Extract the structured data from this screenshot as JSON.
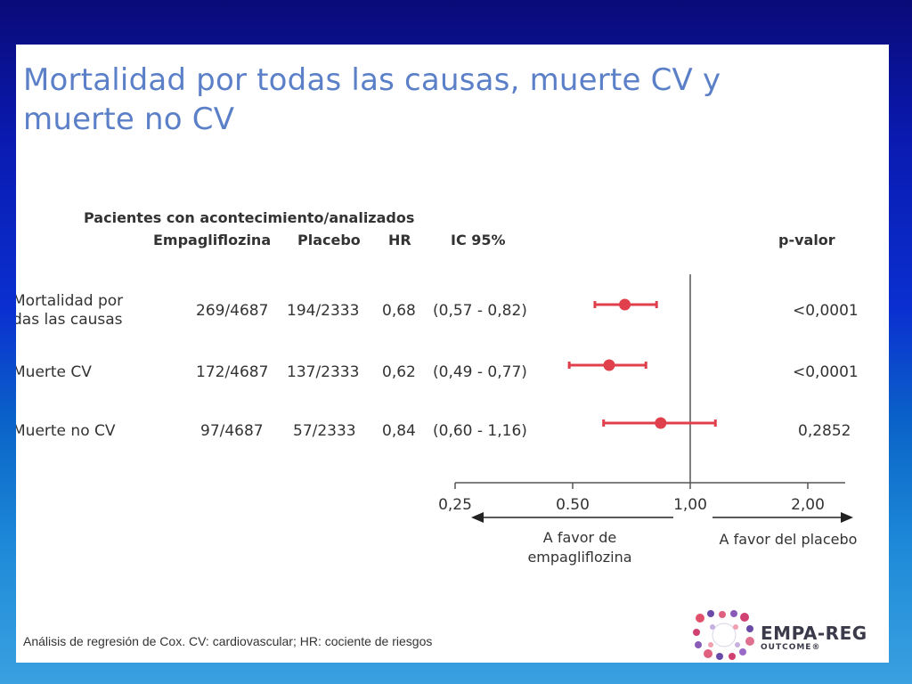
{
  "slide": {
    "title_line1": "Mortalidad por todas las causas, muerte CV y",
    "title_line2": "muerte no CV",
    "footer": "Análisis de regresión de Cox. CV: cardiovascular; HR: cociente de riesgos",
    "logo_line1": "EMPA-REG",
    "logo_line2": "OUTCOME®"
  },
  "table": {
    "group_header": "Pacientes con acontecimiento/analizados",
    "col_empa": "Empagliflozina",
    "col_placebo": "Placebo",
    "col_hr": "HR",
    "col_ic": "IC 95%",
    "col_p": "p-valor",
    "rows": [
      {
        "label_line1": "Mortalidad por",
        "label_line2": "das las causas",
        "empa": "269/4687",
        "placebo": "194/2333",
        "hr": "0,68",
        "ic": "(0,57 - 0,82)",
        "p": "<0,0001"
      },
      {
        "label_line1": "Muerte CV",
        "label_line2": "",
        "empa": "172/4687",
        "placebo": "137/2333",
        "hr": "0,62",
        "ic": "(0,49 - 0,77)",
        "p": "<0,0001"
      },
      {
        "label_line1": "Muerte no CV",
        "label_line2": "",
        "empa": "97/4687",
        "placebo": "57/2333",
        "hr": "0,84",
        "ic": "(0,60 - 1,16)",
        "p": "0,2852"
      }
    ]
  },
  "chart_data": {
    "type": "scatter",
    "subtype": "forest-plot",
    "x_scale": "log",
    "xlim": [
      0.25,
      2.0
    ],
    "ticks": [
      0.25,
      0.5,
      1.0,
      2.0
    ],
    "tick_labels": [
      "0,25",
      "0.50",
      "1,00",
      "2,00"
    ],
    "reference_line": 1.0,
    "points": [
      {
        "hr": 0.68,
        "lower": 0.57,
        "upper": 0.82
      },
      {
        "hr": 0.62,
        "lower": 0.49,
        "upper": 0.77
      },
      {
        "hr": 0.84,
        "lower": 0.6,
        "upper": 1.16
      }
    ],
    "point_color": "#e0404c",
    "left_note": "A favor de empagliflozina",
    "left_note_line1": "A favor de",
    "left_note_line2": "empagliflozina",
    "right_note": "A favor del placebo"
  }
}
